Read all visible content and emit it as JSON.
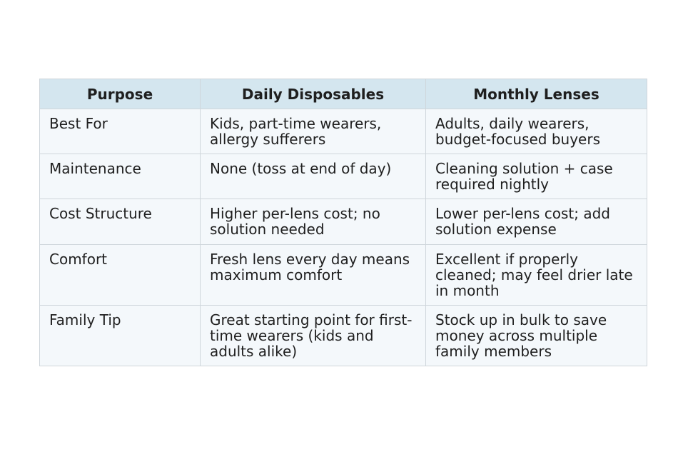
{
  "table": {
    "headers": [
      "Purpose",
      "Daily Disposables",
      "Monthly Lenses"
    ],
    "rows": [
      [
        "Best For",
        "Kids, part-time wearers, allergy sufferers",
        "Adults, daily wearers, budget-focused buyers"
      ],
      [
        "Maintenance",
        "None (toss at end of day)",
        "Cleaning solution + case required nightly"
      ],
      [
        "Cost Structure",
        "Higher per-lens cost; no solution needed",
        "Lower per-lens cost; add solution expense"
      ],
      [
        "Comfort",
        "Fresh lens every day means maximum comfort",
        "Excellent if properly cleaned; may feel drier late in month"
      ],
      [
        "Family Tip",
        "Great starting point for first-time wearers (kids and adults alike)",
        "Stock up in bulk to save money across multiple family members"
      ]
    ]
  },
  "colors": {
    "header_background": "#d4e6ef",
    "row_background": "#f4f8fb",
    "border": "#cfd6db",
    "text": "#1f1f1f"
  }
}
